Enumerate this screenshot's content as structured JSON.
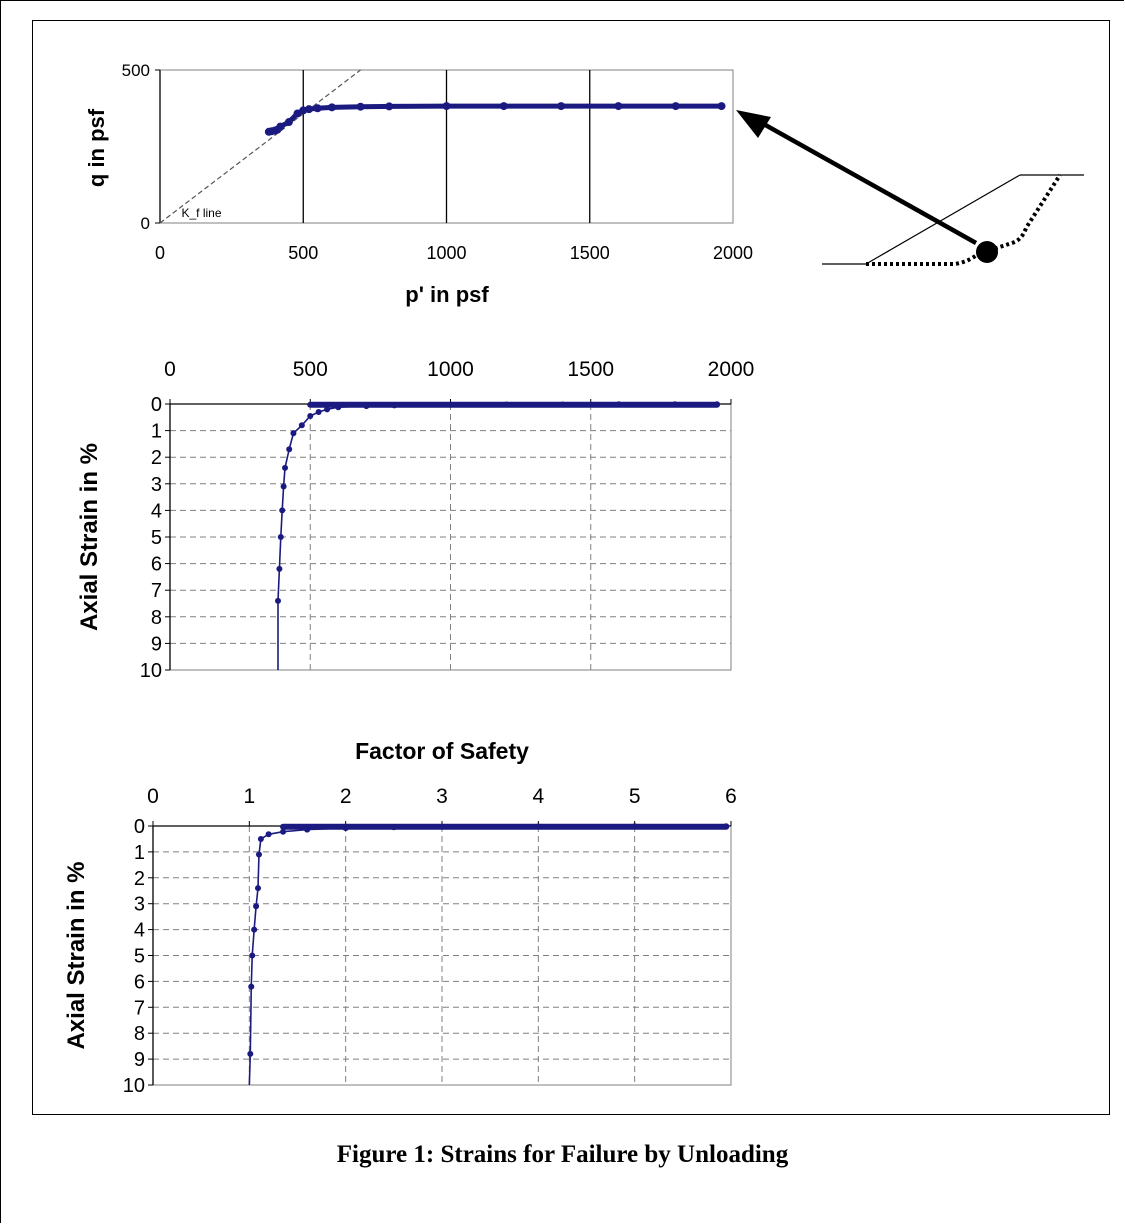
{
  "caption": "Figure 1:  Strains for Failure by Unloading",
  "colors": {
    "series": "#1a1a80",
    "axis": "#000000",
    "grid_dashed": "#808080"
  },
  "chart_data": [
    {
      "type": "scatter",
      "xlabel": "p' in psf",
      "ylabel": "q in psf",
      "xlim": [
        0,
        2000
      ],
      "ylim": [
        0,
        500
      ],
      "xticks": [
        "0",
        "500",
        "1000",
        "1500",
        "2000"
      ],
      "yticks": [
        "0",
        "500"
      ],
      "grid": "vertical solid lines",
      "reference_line": {
        "label": "K_f line",
        "points": [
          [
            0,
            0
          ],
          [
            700,
            500
          ]
        ]
      },
      "series": [
        {
          "x": [
            380,
            390,
            400,
            410,
            420,
            450,
            480,
            500,
            520,
            550,
            600,
            700,
            800,
            1000,
            1200,
            1400,
            1600,
            1800,
            1960
          ],
          "y": [
            298,
            300,
            302,
            305,
            315,
            330,
            358,
            368,
            372,
            375,
            378,
            380,
            381,
            382,
            382,
            382,
            382,
            382,
            382
          ]
        }
      ],
      "annotation": "arrow pointing from slope diagram to last data point"
    },
    {
      "type": "line",
      "xlabel": "",
      "ylabel": "Axial Strain in %",
      "xlim": [
        0,
        2000
      ],
      "ylim": [
        10,
        0
      ],
      "xticks": [
        "0",
        "500",
        "1000",
        "1500",
        "2000"
      ],
      "yticks": [
        "0",
        "1",
        "2",
        "3",
        "4",
        "5",
        "6",
        "7",
        "8",
        "9",
        "10"
      ],
      "grid": "dashed",
      "series": [
        {
          "x": [
            385,
            385,
            390,
            395,
            400,
            405,
            410,
            425,
            440,
            470,
            500,
            530,
            560,
            600,
            700,
            800,
            1000,
            1200,
            1400,
            1600,
            1800,
            1950
          ],
          "y": [
            10,
            7.4,
            6.2,
            5.0,
            4.0,
            3.1,
            2.4,
            1.7,
            1.1,
            0.8,
            0.45,
            0.3,
            0.2,
            0.12,
            0.08,
            0.05,
            0.03,
            0.02,
            0.02,
            0.01,
            0.01,
            0.01
          ]
        }
      ]
    },
    {
      "type": "line",
      "title": "Factor of Safety",
      "xlabel": "",
      "ylabel": "Axial Strain in %",
      "xlim": [
        0,
        6
      ],
      "ylim": [
        10,
        0
      ],
      "xticks": [
        "0",
        "1",
        "2",
        "3",
        "4",
        "5",
        "6"
      ],
      "yticks": [
        "0",
        "1",
        "2",
        "3",
        "4",
        "5",
        "6",
        "7",
        "8",
        "9",
        "10"
      ],
      "grid": "dashed",
      "series": [
        {
          "x": [
            1.0,
            1.01,
            1.02,
            1.03,
            1.05,
            1.07,
            1.09,
            1.1,
            1.12,
            1.2,
            1.35,
            1.6,
            2.0,
            2.5,
            3.0,
            4.0,
            5.0,
            5.95
          ],
          "y": [
            10,
            8.8,
            6.2,
            5.0,
            4.0,
            3.1,
            2.4,
            1.1,
            0.5,
            0.32,
            0.22,
            0.14,
            0.08,
            0.05,
            0.03,
            0.02,
            0.01,
            0.01
          ]
        }
      ]
    }
  ]
}
